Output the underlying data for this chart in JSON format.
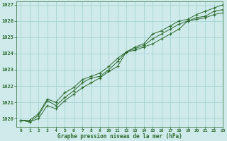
{
  "background_color": "#ceeaea",
  "grid_color": "#a8d4d4",
  "line_color": "#2d6a2d",
  "marker_color": "#2d6a2d",
  "xlabel": "Graphe pression niveau de la mer (hPa)",
  "xlim": [
    -0.5,
    23
  ],
  "ylim": [
    1019.5,
    1027.2
  ],
  "yticks": [
    1020,
    1021,
    1022,
    1023,
    1024,
    1025,
    1026,
    1027
  ],
  "xticks": [
    0,
    1,
    2,
    3,
    4,
    5,
    6,
    7,
    8,
    9,
    10,
    11,
    12,
    13,
    14,
    15,
    16,
    17,
    18,
    19,
    20,
    21,
    22,
    23
  ],
  "series": [
    [
      1019.9,
      1019.8,
      1020.0,
      1020.8,
      1020.6,
      1021.1,
      1021.5,
      1021.9,
      1022.2,
      1022.5,
      1022.9,
      1023.2,
      1024.1,
      1024.2,
      1024.4,
      1024.6,
      1024.9,
      1025.2,
      1025.5,
      1026.0,
      1026.1,
      1026.2,
      1026.4,
      1026.5
    ],
    [
      1019.9,
      1019.8,
      1020.2,
      1021.1,
      1020.8,
      1021.3,
      1021.7,
      1022.2,
      1022.5,
      1022.6,
      1023.0,
      1023.5,
      1024.1,
      1024.3,
      1024.5,
      1024.9,
      1025.2,
      1025.5,
      1025.8,
      1026.0,
      1026.2,
      1026.3,
      1026.6,
      1026.7
    ],
    [
      1019.9,
      1019.9,
      1020.3,
      1021.2,
      1021.0,
      1021.6,
      1021.9,
      1022.4,
      1022.6,
      1022.8,
      1023.2,
      1023.7,
      1024.1,
      1024.4,
      1024.6,
      1025.2,
      1025.4,
      1025.7,
      1026.0,
      1026.1,
      1026.4,
      1026.6,
      1026.8,
      1027.0
    ]
  ],
  "ytick_labels": [
    "1020",
    "1021",
    "1022",
    "1023",
    "1024",
    "1025",
    "1026",
    "1027"
  ]
}
